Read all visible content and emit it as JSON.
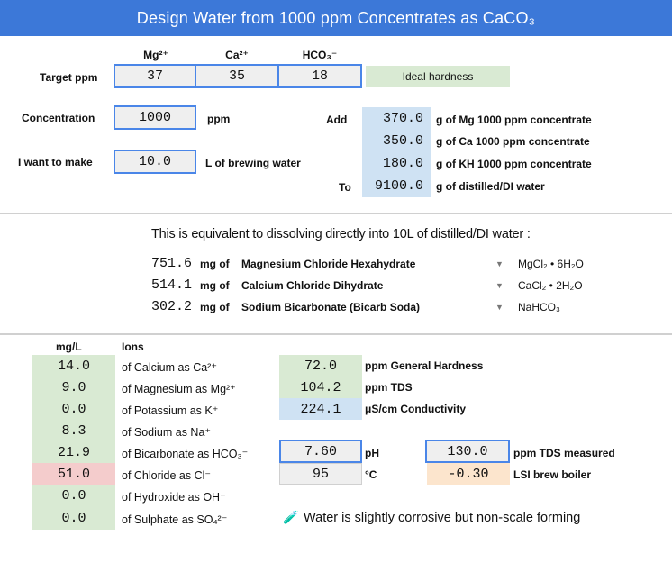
{
  "title": "Design Water from 1000 ppm Concentrates as CaCO₃",
  "target": {
    "label": "Target ppm",
    "headers": {
      "mg": "Mg²⁺",
      "ca": "Ca²⁺",
      "hco3": "HCO₃⁻"
    },
    "mg": "37",
    "ca": "35",
    "hco3": "18",
    "status": "Ideal hardness"
  },
  "concentration": {
    "label": "Concentration",
    "value": "1000",
    "unit": "ppm"
  },
  "make": {
    "label": "I want to make",
    "value": "10.0",
    "unit": "L of brewing water"
  },
  "recipe": {
    "add_label": "Add",
    "to_label": "To",
    "rows": [
      {
        "value": "370.0",
        "desc": "g of Mg 1000 ppm concentrate"
      },
      {
        "value": "350.0",
        "desc": "g of Ca 1000 ppm concentrate"
      },
      {
        "value": "180.0",
        "desc": "g of KH 1000 ppm concentrate"
      },
      {
        "value": "9100.0",
        "desc": "g of distilled/DI water"
      }
    ]
  },
  "equivalent": {
    "heading": "This is equivalent to dissolving directly into 10L of distilled/DI water :",
    "rows": [
      {
        "amount": "751.6",
        "unit": "mg of",
        "salt": "Magnesium Chloride Hexahydrate",
        "formula": "MgCl₂ • 6H₂O"
      },
      {
        "amount": "514.1",
        "unit": "mg of",
        "salt": "Calcium Chloride Dihydrate",
        "formula": "CaCl₂ • 2H₂O"
      },
      {
        "amount": "302.2",
        "unit": "mg of",
        "salt": "Sodium Bicarbonate (Bicarb Soda)",
        "formula": "NaHCO₃"
      }
    ]
  },
  "ions": {
    "header_value": "mg/L",
    "header_label": "Ions",
    "rows": [
      {
        "value": "14.0",
        "label": "of Calcium as Ca²⁺"
      },
      {
        "value": "9.0",
        "label": "of Magnesium as Mg²⁺"
      },
      {
        "value": "0.0",
        "label": "of Potassium as K⁺"
      },
      {
        "value": "8.3",
        "label": "of Sodium as Na⁺"
      },
      {
        "value": "21.9",
        "label": "of Bicarbonate as HCO₃⁻"
      },
      {
        "value": "51.0",
        "label": "of Chloride as Cl⁻"
      },
      {
        "value": "0.0",
        "label": "of Hydroxide as OH⁻"
      },
      {
        "value": "0.0",
        "label": "of Sulphate as SO₄²⁻"
      }
    ]
  },
  "stats": {
    "general_hardness": {
      "value": "72.0",
      "label": "ppm General Hardness"
    },
    "tds": {
      "value": "104.2",
      "label": "ppm TDS"
    },
    "conductivity": {
      "value": "224.1",
      "label": "μS/cm Conductivity"
    }
  },
  "ph": {
    "value": "7.60",
    "label": "pH"
  },
  "temp": {
    "value": "95",
    "label": "°C"
  },
  "tds_measured": {
    "value": "130.0",
    "label": "ppm TDS measured"
  },
  "lsi": {
    "value": "-0.30",
    "label": "LSI brew boiler"
  },
  "verdict": {
    "icon": "🧪",
    "text": "Water is slightly corrosive but non-scale forming"
  }
}
